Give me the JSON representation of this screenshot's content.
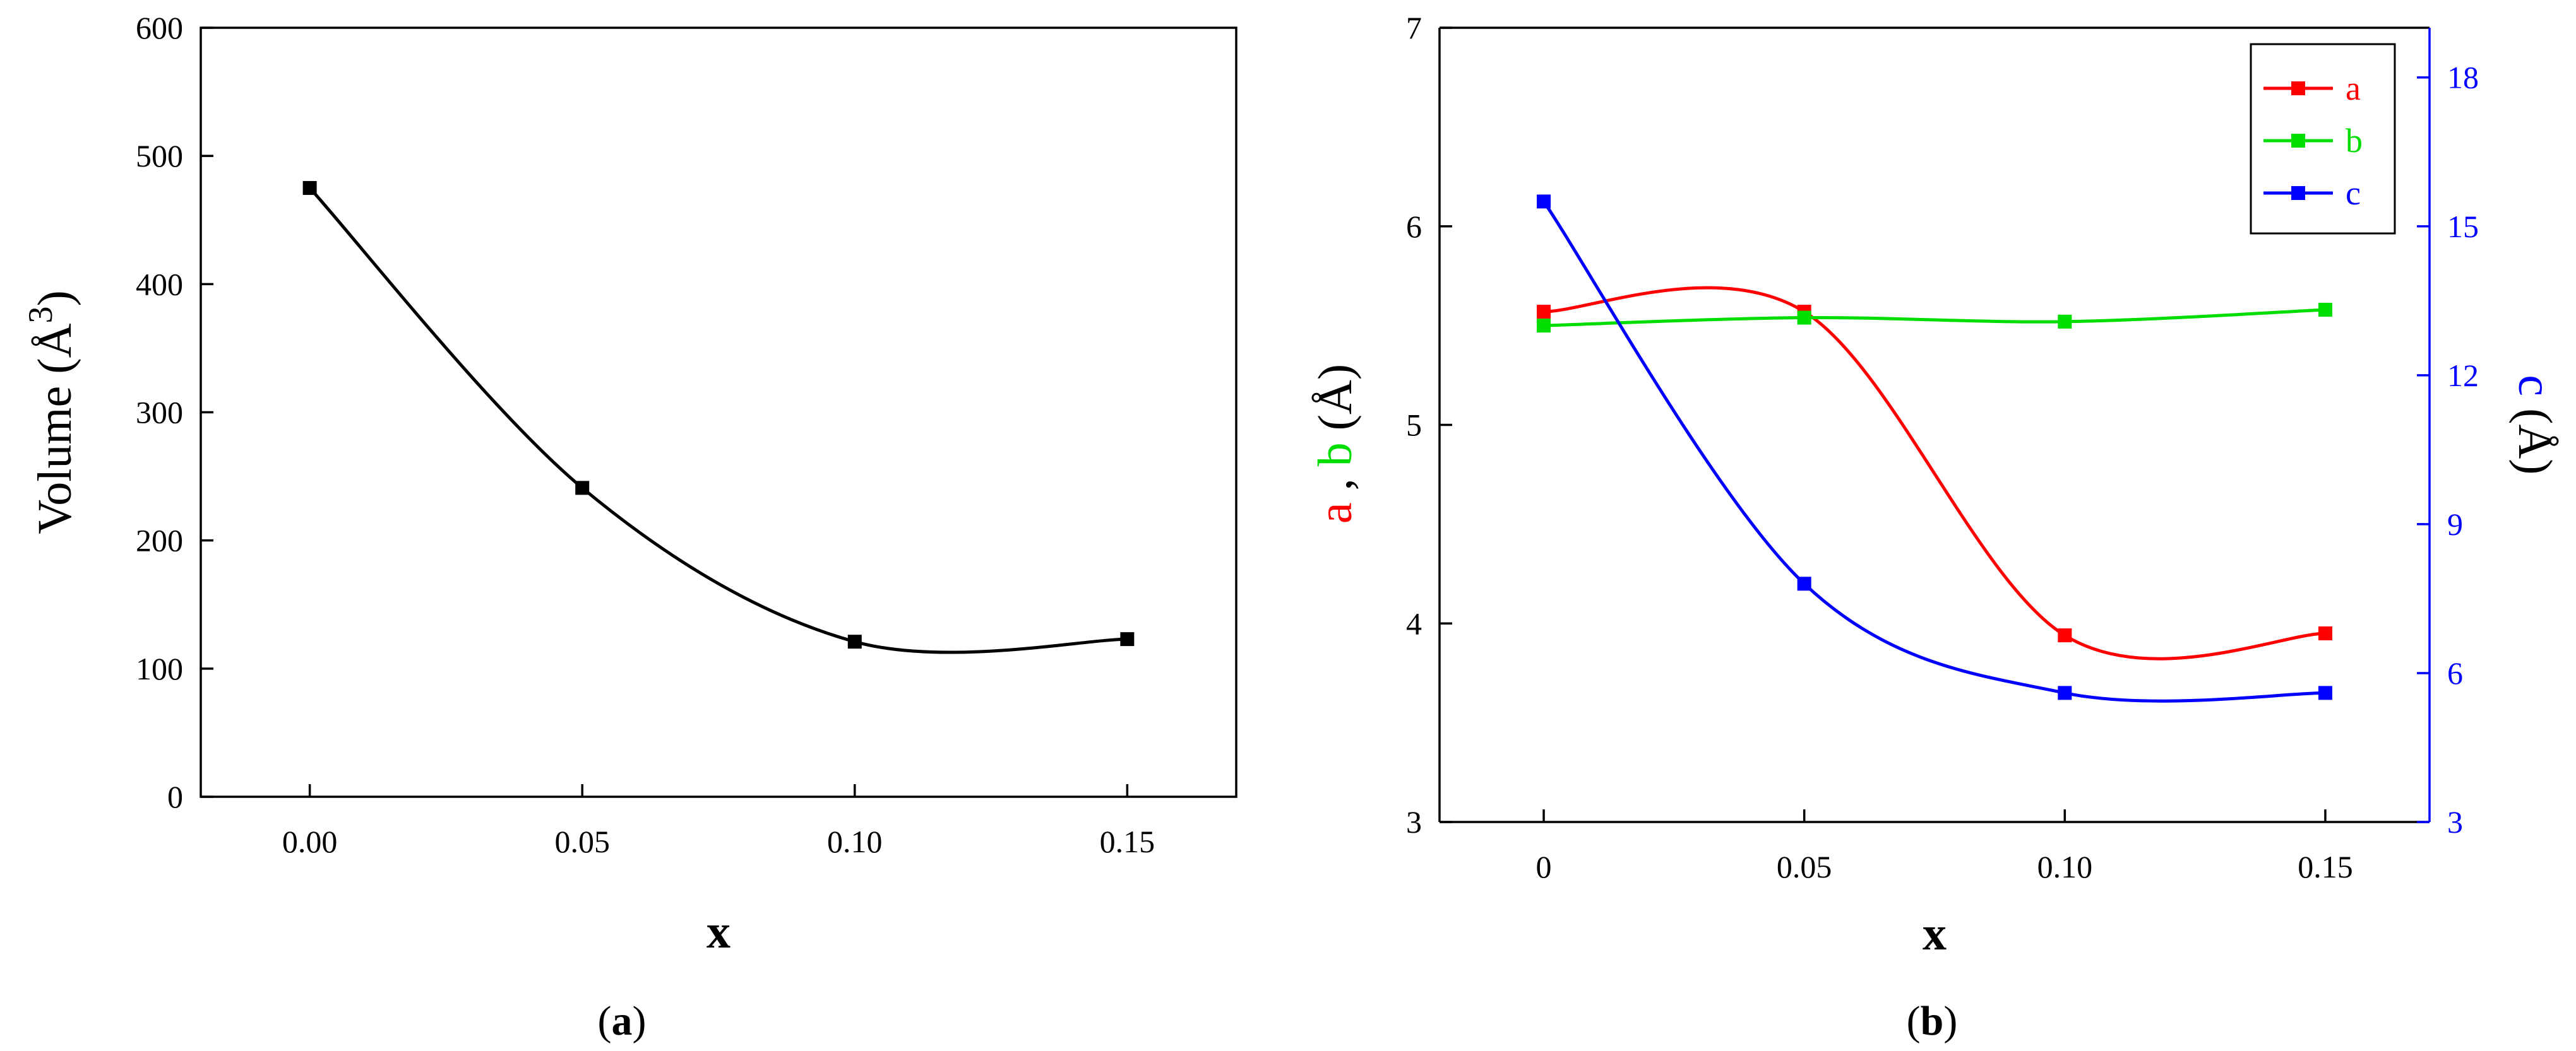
{
  "panel_labels": {
    "a": {
      "open": "(",
      "letter": "a",
      "close": ")"
    },
    "b": {
      "open": "(",
      "letter": "b",
      "close": ")"
    }
  },
  "chart_data": [
    {
      "type": "line",
      "panel": "a",
      "xlabel": "x",
      "ylabel": {
        "text": "Volume (",
        "unit": "Å",
        "exponent": "3",
        "close": ")"
      },
      "xlim": [
        -0.02,
        0.17
      ],
      "ylim": [
        0,
        600
      ],
      "xticks": [
        "0.00",
        "0.05",
        "0.10",
        "0.15"
      ],
      "yticks": [
        "0",
        "100",
        "200",
        "300",
        "400",
        "500",
        "600"
      ],
      "grid": false,
      "series": [
        {
          "color": "#000000",
          "x": [
            0.0,
            0.05,
            0.1,
            0.15
          ],
          "y": [
            475,
            241,
            121,
            123
          ]
        }
      ]
    },
    {
      "type": "line",
      "panel": "b",
      "xlabel": "x",
      "ylabel_left": [
        {
          "text": "a",
          "color": "#ff0000"
        },
        {
          "text": " , ",
          "color": "#000000"
        },
        {
          "text": "b",
          "color": "#00dd00"
        },
        {
          "text": " (Å)",
          "color": "#000000"
        }
      ],
      "ylabel_right": [
        {
          "text": "c",
          "color": "#0000ff"
        },
        {
          "text": " (Å)",
          "color": "#000000"
        }
      ],
      "xlim": [
        -0.02,
        0.17
      ],
      "ylim_left": [
        3,
        7
      ],
      "ylim_right": [
        3,
        19
      ],
      "xticks": [
        "0",
        "0.05",
        "0.10",
        "0.15"
      ],
      "yticks_left": [
        "3",
        "4",
        "5",
        "6",
        "7"
      ],
      "yticks_right": [
        "3",
        "6",
        "9",
        "12",
        "15",
        "18"
      ],
      "legend_position": "top-right",
      "grid": false,
      "series": [
        {
          "name": "a",
          "color": "#ff0000",
          "axis": "left",
          "x": [
            0.0,
            0.05,
            0.1,
            0.15
          ],
          "y": [
            5.57,
            5.57,
            3.94,
            3.95
          ]
        },
        {
          "name": "b",
          "color": "#00dd00",
          "axis": "left",
          "x": [
            0.0,
            0.05,
            0.1,
            0.15
          ],
          "y": [
            5.5,
            5.54,
            5.52,
            5.58
          ]
        },
        {
          "name": "c",
          "color": "#0000ff",
          "axis": "right",
          "x": [
            0.0,
            0.05,
            0.1,
            0.15
          ],
          "y": [
            15.5,
            7.8,
            5.6,
            5.6
          ]
        }
      ]
    }
  ]
}
